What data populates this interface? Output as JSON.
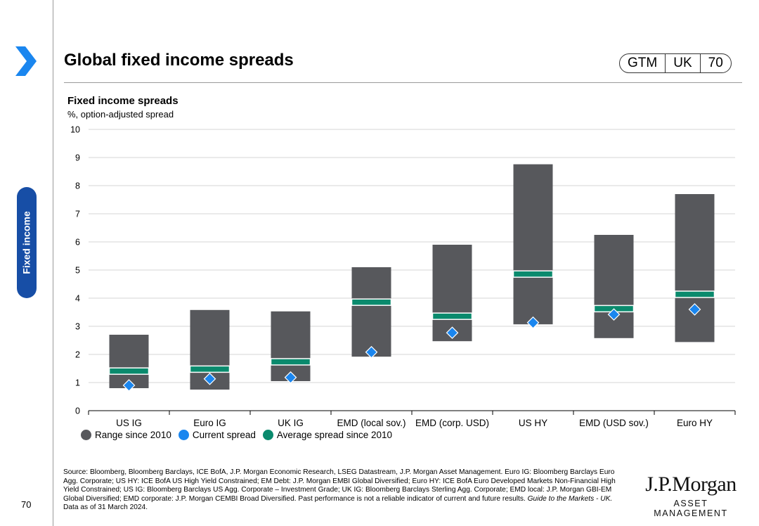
{
  "header": {
    "title": "Global fixed income spreads",
    "badge": [
      "GTM",
      "UK",
      "70"
    ]
  },
  "sidebar": {
    "section_label": "Fixed income"
  },
  "page_number": "70",
  "colors": {
    "range": "#57585c",
    "current": "#1a86ef",
    "average": "#0a8a6d",
    "tab": "#174ea6",
    "chevron": "#1a86ef"
  },
  "chart_data": {
    "type": "bar",
    "title": "Fixed income spreads",
    "subtitle": "%, option-adjusted spread",
    "categories": [
      "US IG",
      "Euro IG",
      "UK IG",
      "EMD (local sov.)",
      "EMD (corp. USD)",
      "US HY",
      "EMD (USD sov.)",
      "Euro HY"
    ],
    "series": [
      {
        "name": "Range since 2010 (low)",
        "values": [
          0.8,
          0.75,
          1.05,
          1.92,
          2.47,
          3.07,
          2.58,
          2.44
        ]
      },
      {
        "name": "Range since 2010 (high)",
        "values": [
          2.7,
          3.58,
          3.53,
          5.1,
          5.9,
          8.76,
          6.25,
          7.7
        ]
      },
      {
        "name": "Current spread",
        "values": [
          0.9,
          1.13,
          1.18,
          2.08,
          2.77,
          3.13,
          3.42,
          3.6
        ]
      },
      {
        "name": "Average spread since 2010",
        "values": [
          1.37,
          1.44,
          1.7,
          3.82,
          3.32,
          4.82,
          3.59,
          4.1
        ]
      }
    ],
    "ylim": [
      0,
      10
    ],
    "yticks": [
      0,
      1,
      2,
      3,
      4,
      5,
      6,
      7,
      8,
      9,
      10
    ],
    "grid": true,
    "legend": [
      "Range since 2010",
      "Current spread",
      "Average spread since 2010"
    ]
  },
  "footer": {
    "source_main": "Source: Bloomberg, Bloomberg Barclays, ICE BofA, J.P. Morgan Economic Research, LSEG Datastream, J.P. Morgan Asset Management. Euro IG: Bloomberg Barclays Euro Agg. Corporate; US HY: ICE BofA US High Yield Constrained; EM Debt: J.P. Morgan EMBI Global Diversified; Euro HY: ICE BofA Euro Developed Markets Non-Financial High Yield Constrained; US IG: Bloomberg Barclays US Agg. Corporate – Investment Grade; UK IG: Bloomberg Barclays Sterling Agg. Corporate; EMD local: J.P. Morgan GBI-EM Global Diversified; EMD corporate: J.P. Morgan CEMBI Broad Diversified. Past performance is not a reliable indicator of current and future results.",
    "source_italic": "Guide to the Markets - UK.",
    "source_end": "Data as of 31 March 2024."
  },
  "logo": {
    "main": "J.P.Morgan",
    "sub": "ASSET MANAGEMENT"
  }
}
